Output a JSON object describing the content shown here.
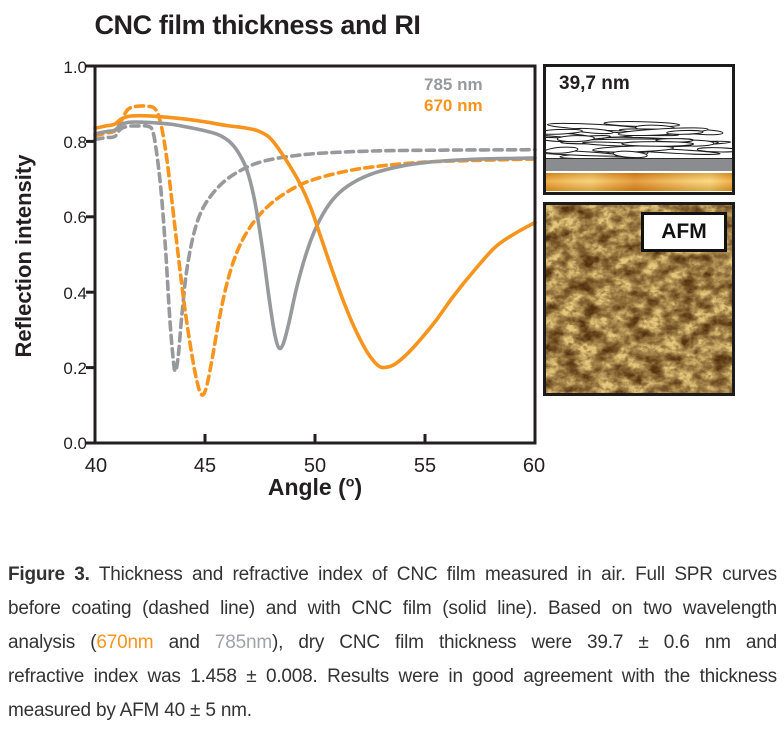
{
  "figure": {
    "title": "CNC film thickness and RI",
    "accent_orange": "#f7941d",
    "accent_gray": "#98999c",
    "axis_color": "#231f20"
  },
  "legend": {
    "item_785": {
      "label": "785 nm",
      "color": "#98999c"
    },
    "item_670": {
      "label": "670 nm",
      "color": "#f7941d"
    }
  },
  "chart_data": {
    "type": "line",
    "title": "CNC film thickness and RI",
    "xlabel_prefix": "Angle (",
    "xlabel_sup": "o",
    "xlabel_suffix": ")",
    "ylabel": "Reflection intensity",
    "xlim": [
      40,
      60
    ],
    "ylim": [
      0.0,
      1.0
    ],
    "grid": false,
    "legend_position": "top-right",
    "xticks": [
      40,
      45,
      50,
      55,
      60
    ],
    "ytick_labels": [
      "0.0",
      "0.2",
      "0.4",
      "0.6",
      "0.8",
      "1.0"
    ],
    "series": [
      {
        "name": "785 nm before coating (dashed)",
        "style": "dashed",
        "color": "#98999c",
        "points": [
          [
            40,
            0.805
          ],
          [
            40.5,
            0.81
          ],
          [
            40.9,
            0.813
          ],
          [
            41.15,
            0.832
          ],
          [
            41.5,
            0.84
          ],
          [
            42.0,
            0.841
          ],
          [
            42.4,
            0.84
          ],
          [
            42.62,
            0.828
          ],
          [
            42.8,
            0.77
          ],
          [
            43.0,
            0.67
          ],
          [
            43.2,
            0.52
          ],
          [
            43.4,
            0.33
          ],
          [
            43.55,
            0.225
          ],
          [
            43.65,
            0.19
          ],
          [
            43.78,
            0.23
          ],
          [
            43.95,
            0.34
          ],
          [
            44.15,
            0.45
          ],
          [
            44.45,
            0.545
          ],
          [
            44.8,
            0.61
          ],
          [
            45.3,
            0.658
          ],
          [
            46.0,
            0.7
          ],
          [
            47.0,
            0.734
          ],
          [
            48.0,
            0.752
          ],
          [
            49.5,
            0.765
          ],
          [
            51.0,
            0.771
          ],
          [
            53.0,
            0.775
          ],
          [
            56.0,
            0.777
          ],
          [
            60,
            0.778
          ]
        ]
      },
      {
        "name": "670 nm before coating (dashed)",
        "style": "dashed",
        "color": "#f7941d",
        "points": [
          [
            40,
            0.815
          ],
          [
            40.5,
            0.822
          ],
          [
            40.9,
            0.828
          ],
          [
            41.2,
            0.855
          ],
          [
            41.5,
            0.885
          ],
          [
            41.9,
            0.893
          ],
          [
            42.4,
            0.893
          ],
          [
            42.75,
            0.885
          ],
          [
            43.0,
            0.845
          ],
          [
            43.25,
            0.76
          ],
          [
            43.5,
            0.64
          ],
          [
            43.8,
            0.49
          ],
          [
            44.1,
            0.35
          ],
          [
            44.4,
            0.235
          ],
          [
            44.65,
            0.16
          ],
          [
            44.85,
            0.128
          ],
          [
            45.05,
            0.145
          ],
          [
            45.3,
            0.215
          ],
          [
            45.65,
            0.33
          ],
          [
            46.05,
            0.435
          ],
          [
            46.55,
            0.52
          ],
          [
            47.2,
            0.585
          ],
          [
            48.0,
            0.635
          ],
          [
            49.0,
            0.675
          ],
          [
            50.0,
            0.7
          ],
          [
            51.5,
            0.722
          ],
          [
            53.0,
            0.735
          ],
          [
            55.0,
            0.745
          ],
          [
            57.5,
            0.75
          ],
          [
            60,
            0.753
          ]
        ]
      },
      {
        "name": "785 nm with CNC film (solid)",
        "style": "solid",
        "color": "#98999c",
        "points": [
          [
            40,
            0.82
          ],
          [
            40.5,
            0.826
          ],
          [
            40.9,
            0.83
          ],
          [
            41.2,
            0.845
          ],
          [
            41.6,
            0.851
          ],
          [
            42.2,
            0.851
          ],
          [
            42.8,
            0.849
          ],
          [
            43.5,
            0.845
          ],
          [
            44.2,
            0.838
          ],
          [
            45.0,
            0.828
          ],
          [
            45.6,
            0.818
          ],
          [
            46.1,
            0.8
          ],
          [
            46.5,
            0.772
          ],
          [
            46.9,
            0.725
          ],
          [
            47.25,
            0.645
          ],
          [
            47.6,
            0.52
          ],
          [
            47.9,
            0.39
          ],
          [
            48.15,
            0.295
          ],
          [
            48.35,
            0.253
          ],
          [
            48.55,
            0.262
          ],
          [
            48.8,
            0.315
          ],
          [
            49.2,
            0.42
          ],
          [
            49.7,
            0.52
          ],
          [
            50.2,
            0.59
          ],
          [
            50.8,
            0.645
          ],
          [
            51.5,
            0.682
          ],
          [
            52.5,
            0.712
          ],
          [
            53.8,
            0.733
          ],
          [
            55.2,
            0.745
          ],
          [
            57.0,
            0.752
          ],
          [
            60,
            0.756
          ]
        ]
      },
      {
        "name": "670 nm with CNC film (solid)",
        "style": "solid",
        "color": "#f7941d",
        "points": [
          [
            40,
            0.835
          ],
          [
            40.5,
            0.841
          ],
          [
            40.9,
            0.846
          ],
          [
            41.2,
            0.86
          ],
          [
            41.6,
            0.867
          ],
          [
            42.3,
            0.868
          ],
          [
            43.1,
            0.865
          ],
          [
            44.0,
            0.86
          ],
          [
            45.0,
            0.852
          ],
          [
            46.0,
            0.842
          ],
          [
            46.8,
            0.836
          ],
          [
            47.4,
            0.828
          ],
          [
            47.9,
            0.812
          ],
          [
            48.35,
            0.78
          ],
          [
            48.8,
            0.74
          ],
          [
            49.3,
            0.69
          ],
          [
            49.8,
            0.625
          ],
          [
            50.3,
            0.54
          ],
          [
            50.8,
            0.455
          ],
          [
            51.3,
            0.375
          ],
          [
            51.8,
            0.305
          ],
          [
            52.3,
            0.248
          ],
          [
            52.7,
            0.215
          ],
          [
            53.0,
            0.201
          ],
          [
            53.35,
            0.202
          ],
          [
            53.7,
            0.212
          ],
          [
            54.2,
            0.237
          ],
          [
            54.8,
            0.275
          ],
          [
            55.5,
            0.325
          ],
          [
            56.3,
            0.39
          ],
          [
            57.2,
            0.455
          ],
          [
            58.2,
            0.52
          ],
          [
            59.1,
            0.556
          ],
          [
            60,
            0.585
          ]
        ]
      }
    ]
  },
  "schematic": {
    "thickness_label": "39,7 nm",
    "layers": [
      "cnc-nanocrystal-film",
      "chromium-layer",
      "gold-layer"
    ]
  },
  "afm": {
    "label": "AFM",
    "palette": [
      "#3f2408",
      "#8a5c1c",
      "#c89232",
      "#e8c95e",
      "#fff6d8"
    ]
  },
  "caption": {
    "line1_bold": "Figure 3.",
    "line1_rest": " Thickness and refractive index of CNC film measured in air. Full SPR curves",
    "line2": "before coating (dashed line) and with CNC film (solid line). Based on two wavelength",
    "line3_pre": "analysis (",
    "line3_670": "670nm",
    "line3_and": " and ",
    "line3_785": "785nm",
    "line3_post": "), dry CNC film thickness were 39.7 ± 0.6 nm and",
    "line4": "refractive index was 1.458 ± 0.008. Results were in good agreement with the thickness",
    "line5": "measured by AFM 40 ± 5 nm."
  }
}
